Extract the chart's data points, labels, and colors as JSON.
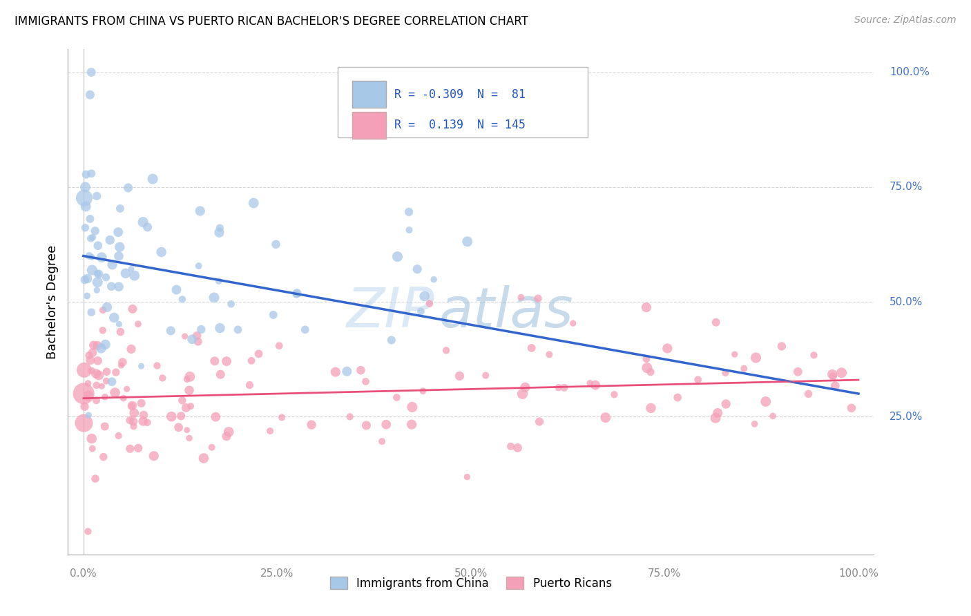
{
  "title": "IMMIGRANTS FROM CHINA VS PUERTO RICAN BACHELOR'S DEGREE CORRELATION CHART",
  "source": "Source: ZipAtlas.com",
  "ylabel": "Bachelor's Degree",
  "ytick_labels": [
    "25.0%",
    "50.0%",
    "75.0%",
    "100.0%"
  ],
  "xtick_labels": [
    "0.0%",
    "25.0%",
    "50.0%",
    "75.0%",
    "100.0%"
  ],
  "legend_label1": "Immigrants from China",
  "legend_label2": "Puerto Ricans",
  "blue_color": "#a8c8e8",
  "pink_color": "#f4a0b8",
  "blue_line_color": "#3366cc",
  "pink_line_color": "#e8507a",
  "blue_line": {
    "x0": 0,
    "x1": 100,
    "y0": 60,
    "y1": 30
  },
  "pink_line": {
    "x0": 0,
    "x1": 100,
    "y0": 29,
    "y1": 33
  },
  "xlim": [
    -2,
    102
  ],
  "ylim": [
    -5,
    105
  ],
  "grid_color": "#cccccc",
  "background": "#ffffff",
  "watermark_zip": "ZIP",
  "watermark_atlas": "atlas"
}
